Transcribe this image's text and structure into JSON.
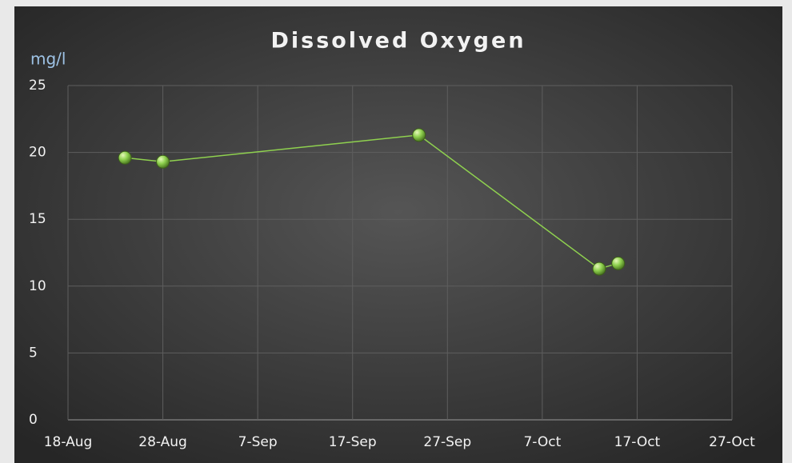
{
  "chart_data": {
    "type": "line",
    "title": "Dissolved Oxygen",
    "y_label": "mg/l",
    "x": [
      236,
      240,
      267,
      286,
      288
    ],
    "series": [
      {
        "name": "Dissolved Oxygen",
        "color": "#8fd14f",
        "values": [
          19.6,
          19.3,
          21.3,
          11.3,
          11.7
        ]
      }
    ],
    "xlim": [
      230,
      300
    ],
    "xticks": [
      {
        "value": 230,
        "label": "18-Aug"
      },
      {
        "value": 240,
        "label": "28-Aug"
      },
      {
        "value": 250,
        "label": "7-Sep"
      },
      {
        "value": 260,
        "label": "17-Sep"
      },
      {
        "value": 270,
        "label": "27-Sep"
      },
      {
        "value": 280,
        "label": "7-Oct"
      },
      {
        "value": 290,
        "label": "17-Oct"
      },
      {
        "value": 300,
        "label": "27-Oct"
      }
    ],
    "ylim": [
      0,
      25
    ],
    "yticks": [
      0,
      5,
      10,
      15,
      20,
      25
    ],
    "grid": true
  }
}
